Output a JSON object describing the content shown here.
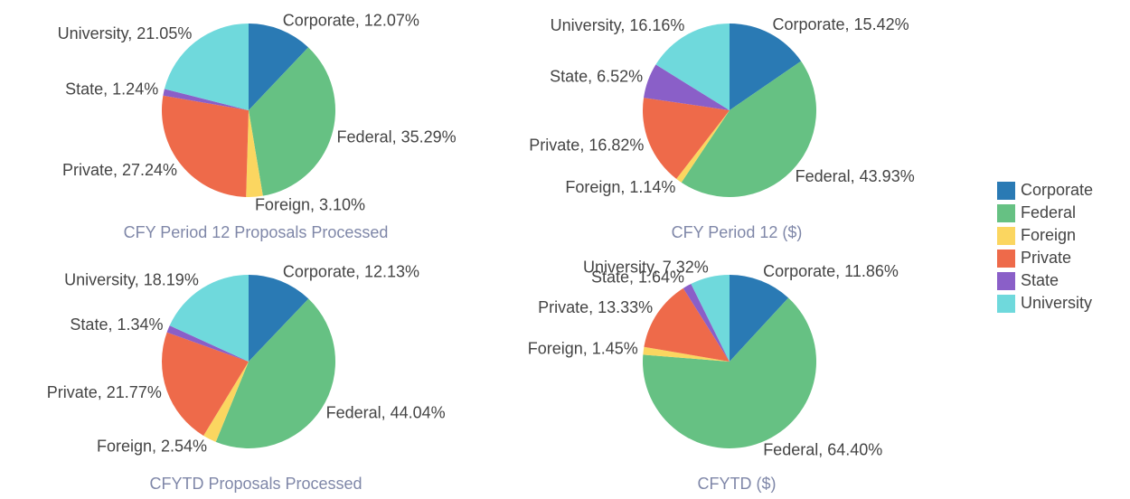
{
  "chart_data": [
    {
      "type": "pie",
      "title": "CFY Period 12 Proposals Processed",
      "categories": [
        "Corporate",
        "Federal",
        "Foreign",
        "Private",
        "State",
        "University"
      ],
      "values": [
        12.07,
        35.29,
        3.1,
        27.24,
        1.24,
        21.05
      ],
      "value_labels": [
        "Corporate, 12.07%",
        "Federal, 35.29%",
        "Foreign, 3.10%",
        "Private, 27.24%",
        "State, 1.24%",
        "University, 21.05%"
      ],
      "colors": [
        "#2a7ab4",
        "#66c183",
        "#fbd660",
        "#ee6a4a",
        "#8a5fc8",
        "#6fd9dc"
      ],
      "legend": "right"
    },
    {
      "type": "pie",
      "title": "CFY Period 12 ($)",
      "categories": [
        "Corporate",
        "Federal",
        "Foreign",
        "Private",
        "State",
        "University"
      ],
      "values": [
        15.42,
        43.93,
        1.14,
        16.82,
        6.52,
        16.16
      ],
      "value_labels": [
        "Corporate, 15.42%",
        "Federal, 43.93%",
        "Foreign, 1.14%",
        "Private, 16.82%",
        "State, 6.52%",
        "University, 16.16%"
      ],
      "colors": [
        "#2a7ab4",
        "#66c183",
        "#fbd660",
        "#ee6a4a",
        "#8a5fc8",
        "#6fd9dc"
      ]
    },
    {
      "type": "pie",
      "title": "CFYTD Proposals Processed",
      "categories": [
        "Corporate",
        "Federal",
        "Foreign",
        "Private",
        "State",
        "University"
      ],
      "values": [
        12.13,
        44.04,
        2.54,
        21.77,
        1.34,
        18.19
      ],
      "value_labels": [
        "Corporate, 12.13%",
        "Federal, 44.04%",
        "Foreign, 2.54%",
        "Private, 21.77%",
        "State, 1.34%",
        "University, 18.19%"
      ],
      "colors": [
        "#2a7ab4",
        "#66c183",
        "#fbd660",
        "#ee6a4a",
        "#8a5fc8",
        "#6fd9dc"
      ]
    },
    {
      "type": "pie",
      "title": "CFYTD ($)",
      "categories": [
        "Corporate",
        "Federal",
        "Foreign",
        "Private",
        "State",
        "University"
      ],
      "values": [
        11.86,
        64.4,
        1.45,
        13.33,
        1.64,
        7.32
      ],
      "value_labels": [
        "Corporate, 11.86%",
        "Federal, 64.40%",
        "Foreign, 1.45%",
        "Private, 13.33%",
        "State, 1.64%",
        "University, 7.32%"
      ],
      "colors": [
        "#2a7ab4",
        "#66c183",
        "#fbd660",
        "#ee6a4a",
        "#8a5fc8",
        "#6fd9dc"
      ]
    }
  ]
}
